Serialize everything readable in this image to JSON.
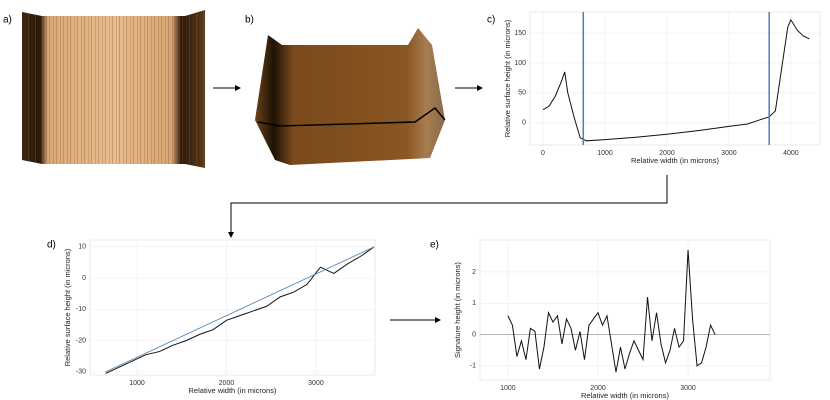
{
  "images": [
    {
      "label": "a)"
    },
    {
      "label": "b)"
    }
  ],
  "chart_data": [
    {
      "type": "line",
      "label": "c)",
      "xlabel": "Relative width (in microns)",
      "ylabel": "Relative surface height (in microns)",
      "x": [
        0,
        100,
        200,
        300,
        350,
        400,
        500,
        600,
        700,
        1000,
        1500,
        2000,
        2500,
        3000,
        3300,
        3500,
        3650,
        3750,
        3850,
        3950,
        4000,
        4100,
        4200,
        4300
      ],
      "series": [
        {
          "color": "#111111",
          "values": [
            22,
            28,
            45,
            70,
            85,
            50,
            10,
            -25,
            -30,
            -28,
            -24,
            -19,
            -13,
            -6,
            -2,
            5,
            10,
            20,
            90,
            160,
            172,
            155,
            145,
            140
          ]
        }
      ],
      "vlines": [
        650,
        3650
      ],
      "vline_color": "#4a7fb5",
      "xlim": [
        -210,
        4470
      ],
      "xticks": [
        0,
        1000,
        2000,
        3000,
        4000
      ],
      "ylim": [
        -37,
        185
      ],
      "yticks": [
        0,
        50,
        100,
        150
      ],
      "grid": true
    },
    {
      "type": "line",
      "label": "d)",
      "xlabel": "Relative width (in microns)",
      "ylabel": "Relative surface height (in microns)",
      "x": [
        650,
        800,
        950,
        1100,
        1250,
        1400,
        1550,
        1700,
        1850,
        2000,
        2150,
        2300,
        2450,
        2600,
        2750,
        2900,
        3050,
        3200,
        3350,
        3500,
        3650
      ],
      "series": [
        {
          "color": "#111111",
          "values": [
            -30.5,
            -28.5,
            -26.5,
            -24.5,
            -23.5,
            -21.5,
            -20,
            -18,
            -16.5,
            -13.5,
            -12,
            -10.5,
            -9,
            -6,
            -4.5,
            -2,
            3.5,
            1.5,
            4.5,
            7,
            10
          ]
        },
        {
          "color": "#4a7fb5",
          "values": [
            -30,
            -28,
            -26,
            -24,
            -22,
            -20,
            -18,
            -16,
            -14,
            -12,
            -10,
            -8,
            -6,
            -4,
            -2,
            0,
            2,
            4,
            6,
            8,
            10
          ]
        }
      ],
      "xlim": [
        475,
        3660
      ],
      "xticks": [
        1000,
        2000,
        3000
      ],
      "ylim": [
        -31,
        12.2
      ],
      "yticks": [
        -30,
        -20,
        -10,
        0,
        10
      ],
      "grid": true
    },
    {
      "type": "line",
      "label": "e)",
      "xlabel": "Relative width (in microns)",
      "ylabel": "Signature height (in microns)",
      "x": [
        1000,
        1050,
        1100,
        1150,
        1200,
        1250,
        1300,
        1350,
        1400,
        1450,
        1500,
        1550,
        1600,
        1650,
        1700,
        1750,
        1800,
        1850,
        1900,
        1950,
        2000,
        2050,
        2100,
        2150,
        2200,
        2250,
        2300,
        2350,
        2400,
        2450,
        2500,
        2550,
        2600,
        2650,
        2700,
        2750,
        2800,
        2850,
        2900,
        2950,
        3000,
        3050,
        3100,
        3150,
        3200,
        3250,
        3300
      ],
      "series": [
        {
          "color": "#111111",
          "values": [
            0.6,
            0.3,
            -0.7,
            -0.2,
            -0.8,
            0.2,
            0.1,
            -1.1,
            -0.4,
            0.7,
            0.4,
            0.6,
            -0.3,
            0.5,
            0.2,
            -0.5,
            0.1,
            -0.8,
            0.3,
            0.5,
            0.7,
            0.3,
            0.6,
            -0.3,
            -1.2,
            -0.4,
            -1.1,
            -0.6,
            -0.2,
            -0.5,
            -0.8,
            1.2,
            -0.2,
            0.7,
            -0.3,
            -0.9,
            -0.5,
            0.2,
            -0.4,
            -0.2,
            2.7,
            0.5,
            -1.0,
            -0.9,
            -0.4,
            0.3,
            0.0
          ]
        }
      ],
      "hline": 0,
      "hline_color": "#aaaaaa",
      "xlim": [
        690,
        3910
      ],
      "xticks": [
        1000,
        2000,
        3000
      ],
      "ylim": [
        -1.45,
        3.02
      ],
      "yticks": [
        -1,
        0,
        1,
        2
      ],
      "grid": true
    }
  ]
}
